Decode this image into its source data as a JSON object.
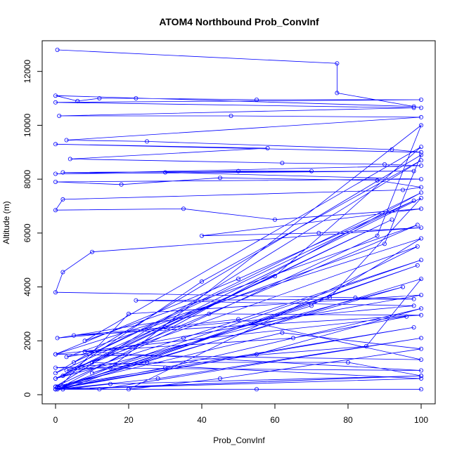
{
  "chart_data": {
    "type": "line",
    "title": "ATOM4 Northbound Prob_ConvInf",
    "xlabel": "Prob_ConvInf",
    "ylabel": "Altitude (m)",
    "xlim": [
      0,
      100
    ],
    "ylim": [
      0,
      12800
    ],
    "x_ticks": [
      0,
      20,
      40,
      60,
      80,
      100
    ],
    "y_ticks": [
      0,
      2000,
      4000,
      6000,
      8000,
      10000,
      12000
    ],
    "grid": false,
    "legend": "none",
    "series": [
      {
        "color": "#0000ff",
        "marker": "open-circle",
        "x": [
          0.5,
          77,
          77,
          100,
          98,
          0,
          6,
          12,
          22,
          55,
          100,
          0,
          98,
          1,
          48,
          100,
          3,
          25,
          92,
          100,
          0,
          58,
          4,
          62,
          90,
          100,
          0,
          98,
          2,
          70,
          50,
          30,
          100,
          0,
          18,
          45,
          88,
          100,
          95,
          2,
          0,
          35,
          60,
          100,
          40,
          72,
          100,
          10,
          2,
          0,
          82,
          98,
          22,
          98,
          0.5,
          42,
          100,
          5,
          30,
          50,
          100,
          0,
          96,
          65,
          8,
          100,
          0,
          25,
          80,
          100,
          15,
          2,
          99,
          0,
          55,
          100,
          30,
          1,
          98,
          0,
          62,
          100,
          45,
          20,
          99,
          3,
          85,
          100,
          0,
          28,
          100,
          12,
          0.5,
          95,
          0,
          35,
          100,
          10,
          70,
          100,
          0,
          50,
          98,
          5,
          100,
          0.5,
          20,
          100,
          3,
          90,
          100,
          0,
          60,
          100,
          8,
          99,
          2,
          40,
          100,
          0,
          88,
          100,
          15,
          0,
          75,
          100,
          0,
          92,
          10,
          100,
          0.5,
          55,
          100,
          2,
          100,
          0
        ],
        "y": [
          12800,
          12300,
          11200,
          10650,
          10700,
          11100,
          10900,
          11000,
          11000,
          10950,
          10950,
          10850,
          10650,
          10350,
          10350,
          10300,
          9450,
          9400,
          9100,
          9000,
          9300,
          9150,
          8750,
          8600,
          8550,
          8500,
          8200,
          8300,
          8250,
          8300,
          8300,
          8250,
          8000,
          7900,
          7800,
          8050,
          7950,
          7700,
          7600,
          7250,
          6850,
          6900,
          6500,
          6900,
          5900,
          6000,
          6200,
          5300,
          4550,
          3800,
          3600,
          3550,
          3500,
          3300,
          2100,
          3000,
          2950,
          2200,
          2500,
          2800,
          1300,
          1500,
          2900,
          2100,
          1600,
          900,
          1000,
          1200,
          1200,
          700,
          400,
          200,
          4800,
          200,
          1500,
          3200,
          1000,
          250,
          2500,
          300,
          2300,
          1700,
          600,
          200,
          5500,
          900,
          1800,
          4300,
          200,
          600,
          2100,
          200,
          300,
          4000,
          600,
          2100,
          5000,
          800,
          3300,
          5800,
          1500,
          4300,
          7200,
          1200,
          7500,
          200,
          3000,
          3700,
          1400,
          5600,
          8900,
          800,
          4400,
          9200,
          2000,
          6300,
          700,
          4200,
          8700,
          300,
          5900,
          10000,
          1000,
          200,
          3600,
          7300,
          600,
          6500,
          1200,
          600,
          200,
          200,
          200,
          200,
          700,
          200
        ]
      }
    ]
  }
}
